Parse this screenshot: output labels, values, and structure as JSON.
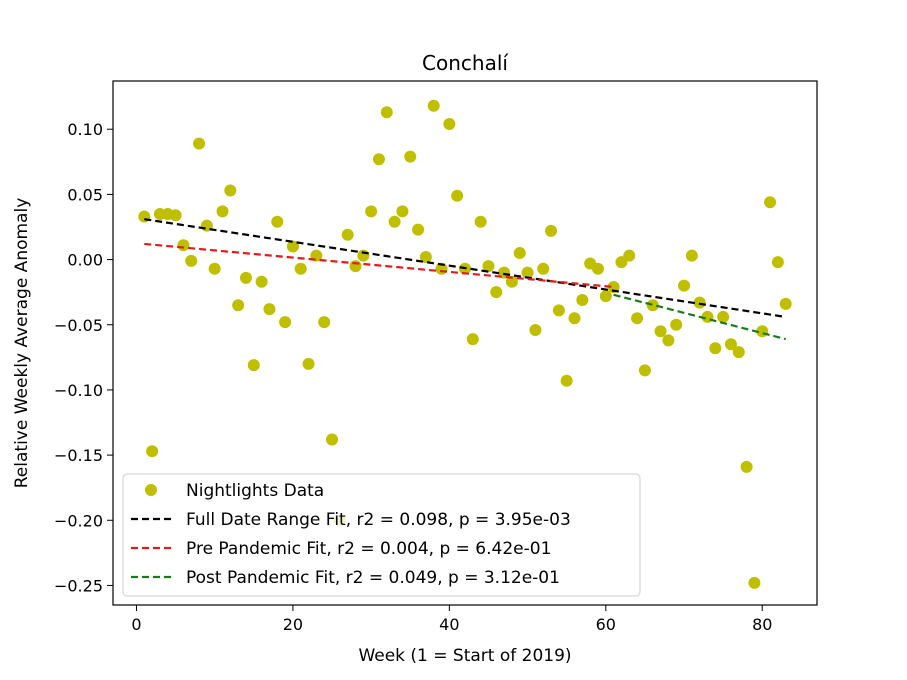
{
  "chart_data": {
    "type": "scatter",
    "title": "Conchalí",
    "xlabel": "Week (1 = Start of 2019)",
    "ylabel": "Relative Weekly Average Anomaly",
    "xlim": [
      -3,
      87
    ],
    "ylim": [
      -0.265,
      0.137
    ],
    "xticks": [
      0,
      20,
      40,
      60,
      80
    ],
    "yticks": [
      0.1,
      0.05,
      0.0,
      -0.05,
      -0.1,
      -0.15,
      -0.2,
      -0.25
    ],
    "ytick_labels": [
      "0.10",
      "0.05",
      "0.00",
      "−0.05",
      "−0.10",
      "−0.15",
      "−0.20",
      "−0.25"
    ],
    "grid": false,
    "legend_position": "lower-left",
    "colors": {
      "points": "#bfbf00",
      "full_fit": "#000000",
      "pre_fit": "#e41a1c",
      "post_fit": "#1a7a1a"
    },
    "series": [
      {
        "name": "Nightlights Data",
        "kind": "scatter",
        "x": [
          1,
          2,
          3,
          4,
          5,
          6,
          7,
          8,
          9,
          10,
          11,
          12,
          13,
          14,
          15,
          16,
          17,
          18,
          19,
          20,
          21,
          22,
          23,
          24,
          25,
          26,
          27,
          28,
          29,
          30,
          31,
          32,
          33,
          34,
          35,
          36,
          37,
          38,
          39,
          40,
          41,
          42,
          43,
          44,
          45,
          46,
          47,
          48,
          49,
          50,
          51,
          52,
          53,
          54,
          55,
          56,
          57,
          58,
          59,
          60,
          61,
          62,
          63,
          64,
          65,
          66,
          67,
          68,
          69,
          70,
          71,
          72,
          73,
          74,
          75,
          76,
          77,
          78,
          79,
          80,
          81,
          82,
          83
        ],
        "y": [
          0.033,
          -0.147,
          0.035,
          0.035,
          0.034,
          0.011,
          -0.001,
          0.089,
          0.026,
          -0.007,
          0.037,
          0.053,
          -0.035,
          -0.014,
          -0.081,
          -0.017,
          -0.038,
          0.029,
          -0.048,
          0.01,
          -0.007,
          -0.08,
          0.003,
          -0.048,
          -0.138,
          -0.2,
          0.019,
          -0.005,
          0.003,
          0.037,
          0.077,
          0.113,
          0.029,
          0.037,
          0.079,
          0.023,
          0.002,
          0.118,
          -0.007,
          0.104,
          0.049,
          -0.007,
          -0.061,
          0.029,
          -0.005,
          -0.025,
          -0.01,
          -0.017,
          0.005,
          -0.01,
          -0.054,
          -0.007,
          0.022,
          -0.039,
          -0.093,
          -0.045,
          -0.031,
          -0.003,
          -0.007,
          -0.028,
          -0.021,
          -0.002,
          0.003,
          -0.045,
          -0.085,
          -0.035,
          -0.055,
          -0.062,
          -0.05,
          -0.02,
          0.003,
          -0.033,
          -0.044,
          -0.068,
          -0.044,
          -0.065,
          -0.071,
          -0.159,
          -0.248,
          -0.055,
          0.044,
          -0.002,
          -0.034
        ]
      },
      {
        "name": "Full Date Range Fit, r2 = 0.098, p = 3.95e-03",
        "kind": "line",
        "dash": true,
        "x": [
          1,
          83
        ],
        "y": [
          0.031,
          -0.044
        ]
      },
      {
        "name": "Pre Pandemic Fit, r2 = 0.004, p = 6.42e-01",
        "kind": "line",
        "dash": true,
        "x": [
          1,
          61
        ],
        "y": [
          0.012,
          -0.021
        ]
      },
      {
        "name": "Post Pandemic Fit, r2 = 0.049, p = 3.12e-01",
        "kind": "line",
        "dash": true,
        "x": [
          61,
          83
        ],
        "y": [
          -0.027,
          -0.061
        ]
      }
    ]
  }
}
